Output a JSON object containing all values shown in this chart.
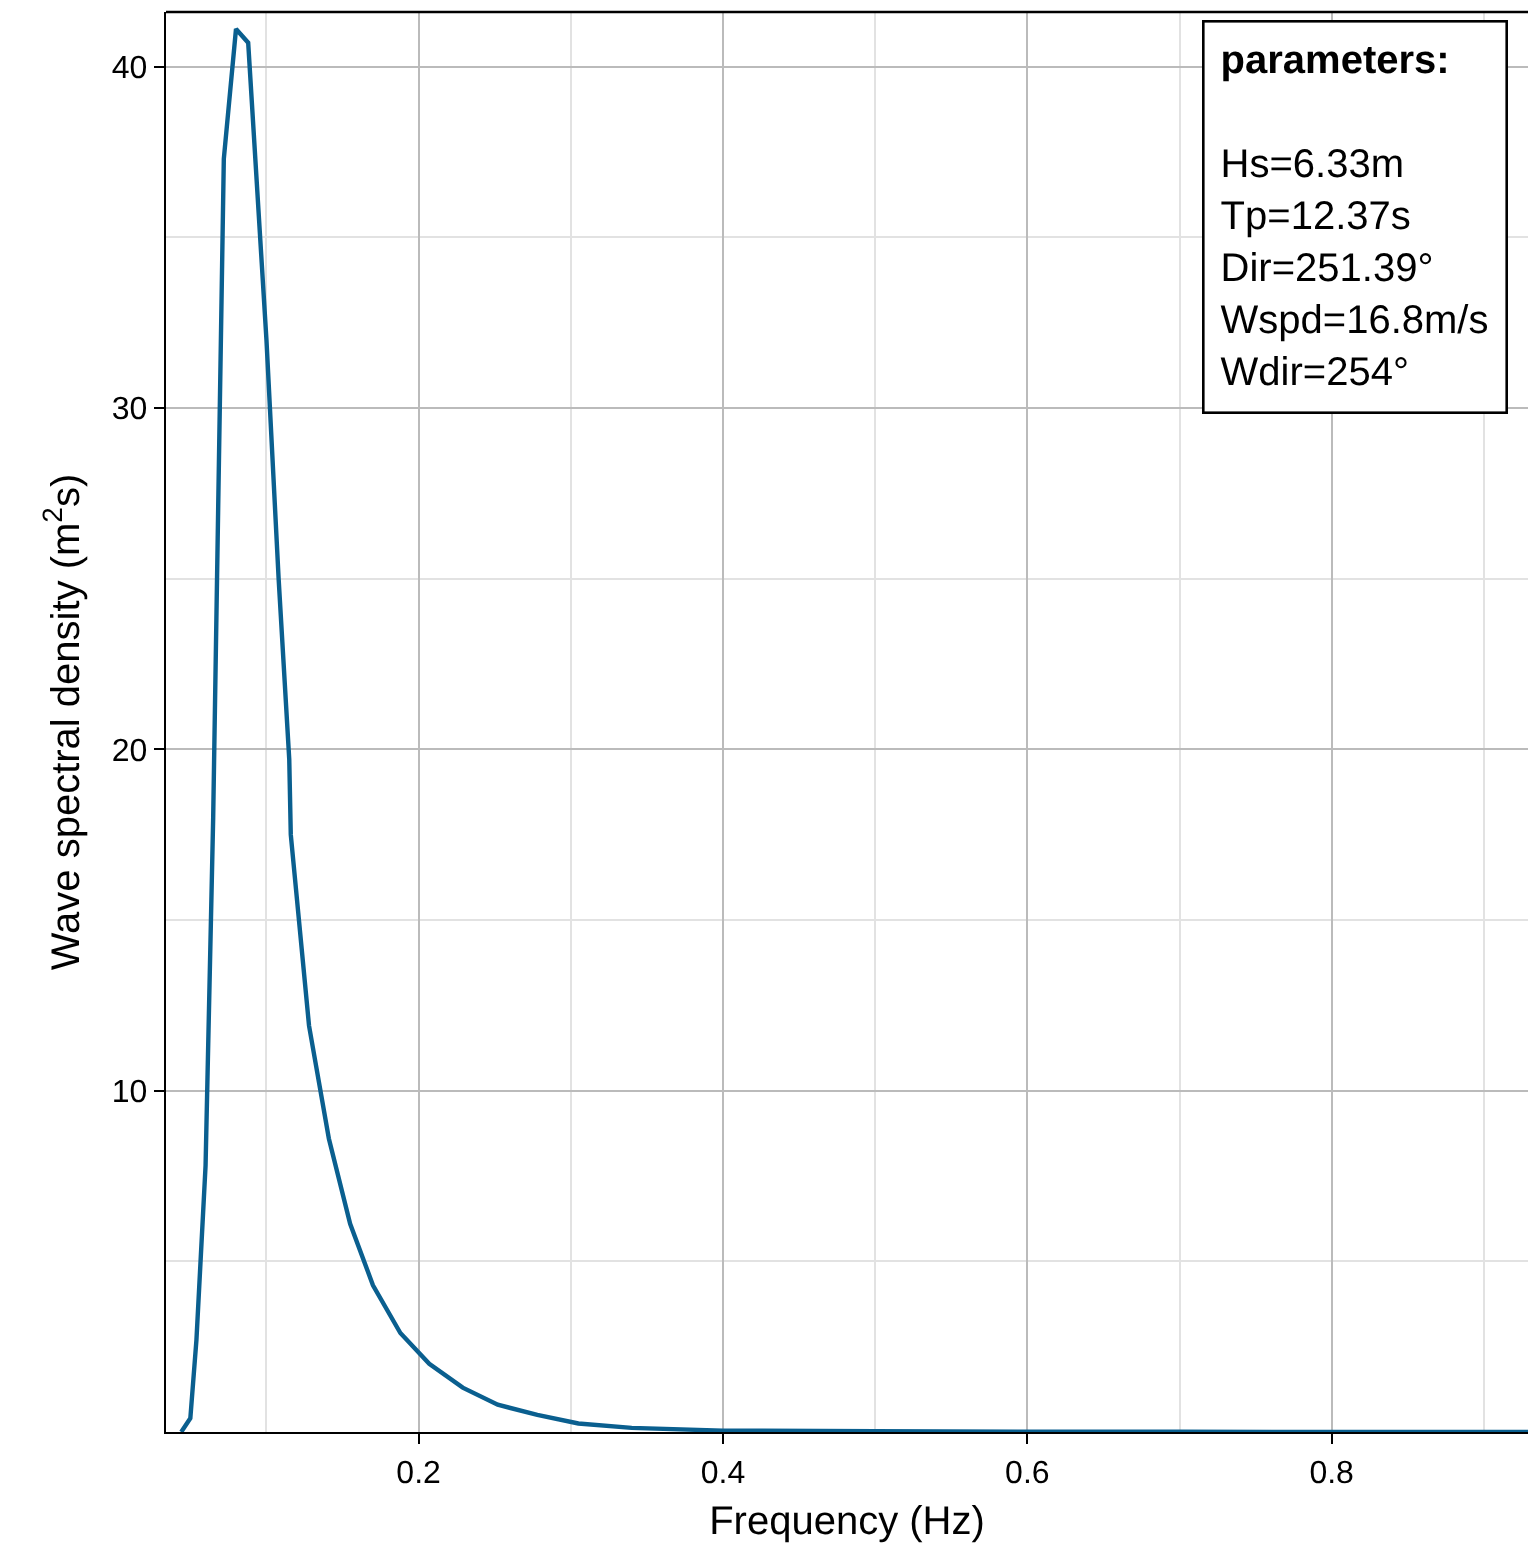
{
  "chart_data": {
    "type": "line",
    "xlabel": "Frequency (Hz)",
    "ylabel": "Wave spectral density (m$^{2}$s)",
    "annotations": [
      "parameters:",
      "Hs=6.33m",
      "Tp=12.37s",
      "Dir=251.39°",
      "Wspd=16.8m/s",
      "Wdir=254°"
    ],
    "series": [
      {
        "color": "#0a5f8f",
        "x": [
          0.044,
          0.05,
          0.054,
          0.06,
          0.065,
          0.072,
          0.08,
          0.088,
          0.1,
          0.108,
          0.115,
          0.116,
          0.128,
          0.141,
          0.155,
          0.17,
          0.188,
          0.207,
          0.229,
          0.252,
          0.278,
          0.305,
          0.34,
          0.4,
          0.5,
          0.6,
          0.7,
          0.8,
          0.929
        ],
        "values": [
          0,
          0.4,
          2.7,
          7.8,
          18,
          37.3,
          41.1,
          40.7,
          32,
          25,
          19.7,
          17.5,
          11.9,
          8.6,
          6.1,
          4.3,
          2.9,
          2,
          1.3,
          0.8,
          0.5,
          0.25,
          0.12,
          0.04,
          0.02,
          0.01,
          0.01,
          0,
          0
        ]
      }
    ],
    "xlim": [
      0.034,
      0.929
    ],
    "xticks": [
      0.2,
      0.4,
      0.6,
      0.8
    ],
    "ylim": [
      0,
      41.6
    ],
    "yticks": [
      10,
      20,
      30,
      40
    ],
    "grid": true,
    "line_style": "solid",
    "marker": "none"
  }
}
